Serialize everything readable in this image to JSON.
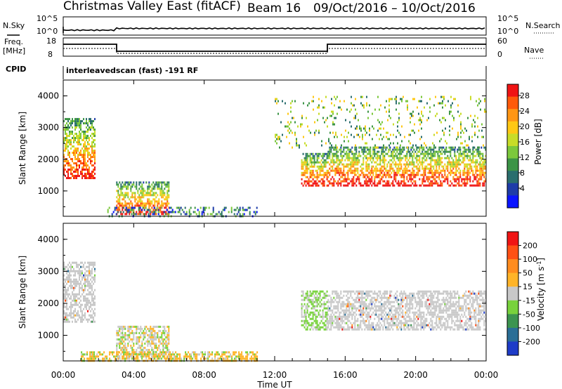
{
  "header": {
    "title": "Christmas Valley East (fitACF)",
    "beam": "Beam 16",
    "date_range": "09/Oct/2016 – 10/Oct/2016"
  },
  "noise_panel": {
    "left_label": "N.Sky",
    "right_label": "N.Search",
    "left_ticks": [
      "10^5",
      "10^0"
    ],
    "right_ticks": [
      "10^5",
      "10^0"
    ]
  },
  "freq_panel": {
    "left_label": "Freq.",
    "left_unit": "[MHz]",
    "left_ticks": [
      "18",
      "8"
    ],
    "right_label": "Nave",
    "right_ticks": [
      "60",
      "0"
    ],
    "cpid_label": "CPID",
    "cpid_value": "interleavedscan (fast) -191 RF"
  },
  "chart_data": [
    {
      "type": "heatmap",
      "name": "power",
      "ylabel": "Slant Range [km]",
      "xlabel": "",
      "xlim": [
        0,
        24
      ],
      "ylim": [
        200,
        4500
      ],
      "yticks": [
        "1000",
        "2000",
        "3000",
        "4000"
      ],
      "colorbar": {
        "label": "Power [dB]",
        "ticks": [
          "4",
          "8",
          "12",
          "16",
          "20",
          "24",
          "28"
        ],
        "colors": [
          "#0a14ff",
          "#1e3ca8",
          "#2a6e6e",
          "#3c9446",
          "#7cc83c",
          "#c8dc28",
          "#ffc814",
          "#ff9614",
          "#ff5a0a",
          "#f01414"
        ]
      },
      "regions": [
        {
          "t": [
            0.0,
            1.8
          ],
          "range": [
            1400,
            3300
          ],
          "level": "high"
        },
        {
          "t": [
            3.0,
            6.0
          ],
          "range": [
            250,
            1300
          ],
          "level": "high"
        },
        {
          "t": [
            2.5,
            11.0
          ],
          "range": [
            200,
            500
          ],
          "level": "low"
        },
        {
          "t": [
            13.5,
            15.0
          ],
          "range": [
            1200,
            2200
          ],
          "level": "high"
        },
        {
          "t": [
            15.0,
            24.0
          ],
          "range": [
            1200,
            2400
          ],
          "level": "high"
        },
        {
          "t": [
            12.0,
            24.0
          ],
          "range": [
            2400,
            4000
          ],
          "level": "mid"
        }
      ]
    },
    {
      "type": "heatmap",
      "name": "velocity",
      "ylabel": "Slant Range [km]",
      "xlabel": "Time UT",
      "xlim": [
        0,
        24
      ],
      "ylim": [
        200,
        4500
      ],
      "yticks": [
        "1000",
        "2000",
        "3000",
        "4000"
      ],
      "xticks": [
        "00:00",
        "04:00",
        "08:00",
        "12:00",
        "16:00",
        "20:00",
        "00:00"
      ],
      "colorbar": {
        "label": "Velocity [m s^-1]",
        "ticks": [
          "200",
          "100",
          "50",
          "15",
          "-15",
          "-50",
          "-100",
          "-200"
        ],
        "colors": [
          "#1e3cc8",
          "#2a6e96",
          "#3c9450",
          "#78d23c",
          "#c8c8c8",
          "#ffb428",
          "#ff8c1e",
          "#ff5014",
          "#f01414"
        ]
      },
      "regions": [
        {
          "t": [
            0.0,
            1.8
          ],
          "range": [
            1400,
            3300
          ],
          "level": "ground"
        },
        {
          "t": [
            3.0,
            6.0
          ],
          "range": [
            250,
            1300
          ],
          "level": "mixed"
        },
        {
          "t": [
            1.0,
            11.0
          ],
          "range": [
            200,
            500
          ],
          "level": "away"
        },
        {
          "t": [
            13.5,
            15.0
          ],
          "range": [
            1200,
            2400
          ],
          "level": "toward"
        },
        {
          "t": [
            15.0,
            24.0
          ],
          "range": [
            1200,
            2400
          ],
          "level": "ground"
        }
      ]
    }
  ]
}
